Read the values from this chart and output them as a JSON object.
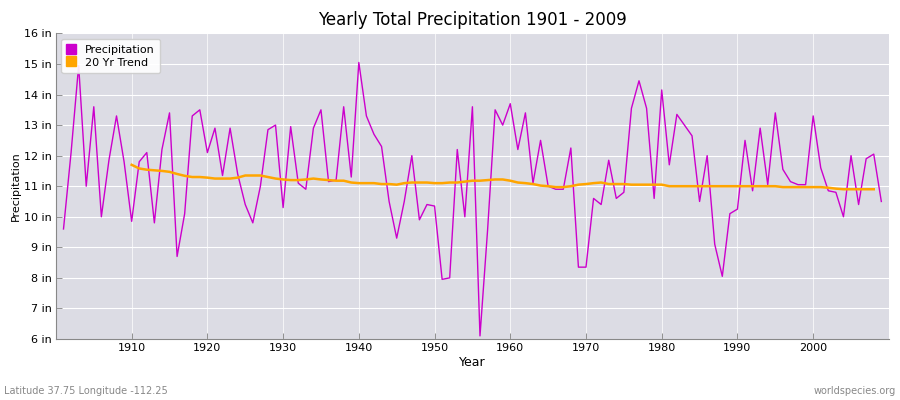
{
  "title": "Yearly Total Precipitation 1901 - 2009",
  "xlabel": "Year",
  "ylabel": "Precipitation",
  "subtitle_left": "Latitude 37.75 Longitude -112.25",
  "subtitle_right": "worldspecies.org",
  "legend_entries": [
    "Precipitation",
    "20 Yr Trend"
  ],
  "precip_color": "#cc00cc",
  "trend_color": "#FFA500",
  "bg_color": "#dcdce4",
  "fig_bg_color": "#ffffff",
  "ylim": [
    6,
    16
  ],
  "yticks": [
    6,
    7,
    8,
    9,
    10,
    11,
    12,
    13,
    14,
    15,
    16
  ],
  "ytick_labels": [
    "6 in",
    "7 in",
    "8 in",
    "9 in",
    "10 in",
    "11 in",
    "12 in",
    "13 in",
    "14 in",
    "15 in",
    "16 in"
  ],
  "xlim": [
    1900,
    2010
  ],
  "xtick_positions": [
    1910,
    1920,
    1930,
    1940,
    1950,
    1960,
    1970,
    1980,
    1990,
    2000
  ],
  "years": [
    1901,
    1902,
    1903,
    1904,
    1905,
    1906,
    1907,
    1908,
    1909,
    1910,
    1911,
    1912,
    1913,
    1914,
    1915,
    1916,
    1917,
    1918,
    1919,
    1920,
    1921,
    1922,
    1923,
    1924,
    1925,
    1926,
    1927,
    1928,
    1929,
    1930,
    1931,
    1932,
    1933,
    1934,
    1935,
    1936,
    1937,
    1938,
    1939,
    1940,
    1941,
    1942,
    1943,
    1944,
    1945,
    1946,
    1947,
    1948,
    1949,
    1950,
    1951,
    1952,
    1953,
    1954,
    1955,
    1956,
    1957,
    1958,
    1959,
    1960,
    1961,
    1962,
    1963,
    1964,
    1965,
    1966,
    1967,
    1968,
    1969,
    1970,
    1971,
    1972,
    1973,
    1974,
    1975,
    1976,
    1977,
    1978,
    1979,
    1980,
    1981,
    1982,
    1983,
    1984,
    1985,
    1986,
    1987,
    1988,
    1989,
    1990,
    1991,
    1992,
    1993,
    1994,
    1995,
    1996,
    1997,
    1998,
    1999,
    2000,
    2001,
    2002,
    2003,
    2004,
    2005,
    2006,
    2007,
    2008,
    2009
  ],
  "precip": [
    9.6,
    12.1,
    14.95,
    11.0,
    13.6,
    10.0,
    11.85,
    13.3,
    11.8,
    9.85,
    11.8,
    12.1,
    9.8,
    12.2,
    13.4,
    8.7,
    10.1,
    13.3,
    13.5,
    12.1,
    12.9,
    11.35,
    12.9,
    11.4,
    10.4,
    9.8,
    11.0,
    12.85,
    13.0,
    10.3,
    12.95,
    11.1,
    10.9,
    12.9,
    13.5,
    11.15,
    11.2,
    13.6,
    11.3,
    15.05,
    13.3,
    12.7,
    12.3,
    10.5,
    9.3,
    10.5,
    12.0,
    9.9,
    10.4,
    10.35,
    7.95,
    8.0,
    12.2,
    10.0,
    13.6,
    6.1,
    9.55,
    13.5,
    13.0,
    13.7,
    12.2,
    13.4,
    11.1,
    12.5,
    11.0,
    10.9,
    10.9,
    12.25,
    8.35,
    8.35,
    10.6,
    10.4,
    11.85,
    10.6,
    10.8,
    13.55,
    14.45,
    13.55,
    10.6,
    14.15,
    11.7,
    13.35,
    13.0,
    12.65,
    10.5,
    12.0,
    9.1,
    8.05,
    10.1,
    10.25,
    12.5,
    10.85,
    12.9,
    11.05,
    13.4,
    11.55,
    11.15,
    11.05,
    11.05,
    13.3,
    11.6,
    10.85,
    10.8,
    10.0,
    12.0,
    10.4,
    11.9,
    12.05,
    10.5
  ],
  "trend_start_year": 1910,
  "trend": [
    11.7,
    11.58,
    11.54,
    11.52,
    11.5,
    11.47,
    11.4,
    11.34,
    11.3,
    11.3,
    11.28,
    11.25,
    11.25,
    11.25,
    11.28,
    11.35,
    11.35,
    11.35,
    11.3,
    11.25,
    11.22,
    11.2,
    11.2,
    11.22,
    11.25,
    11.22,
    11.2,
    11.18,
    11.18,
    11.12,
    11.1,
    11.1,
    11.1,
    11.07,
    11.07,
    11.05,
    11.1,
    11.12,
    11.12,
    11.12,
    11.1,
    11.1,
    11.12,
    11.12,
    11.15,
    11.18,
    11.18,
    11.2,
    11.22,
    11.22,
    11.18,
    11.12,
    11.1,
    11.07,
    11.02,
    11.0,
    10.97,
    10.97,
    11.0,
    11.05,
    11.07,
    11.1,
    11.12,
    11.07,
    11.07,
    11.07,
    11.05,
    11.05,
    11.05,
    11.05,
    11.05,
    11.0,
    11.0,
    11.0,
    11.0,
    11.0,
    11.0,
    11.0,
    11.0,
    11.0,
    11.0,
    11.0,
    11.0,
    11.0,
    11.0,
    11.0,
    10.97,
    10.97,
    10.97,
    10.97,
    10.97,
    10.97,
    10.95,
    10.92,
    10.9,
    10.9,
    10.9,
    10.9,
    10.9
  ]
}
